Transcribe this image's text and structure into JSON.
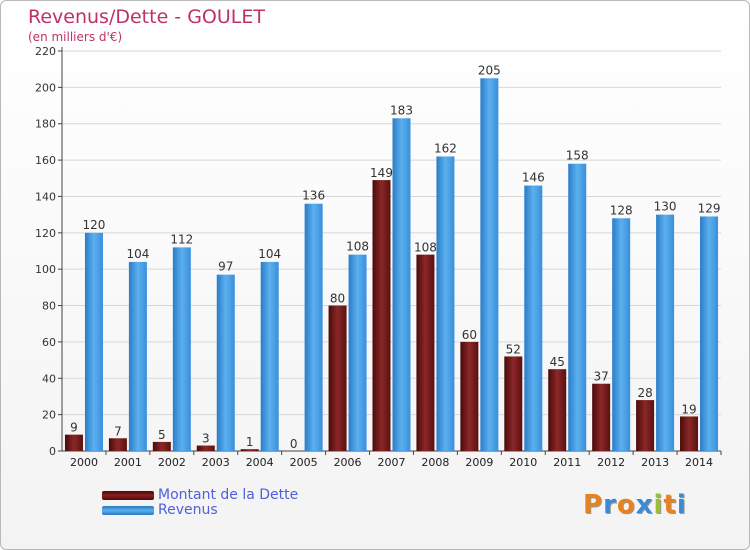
{
  "header": {
    "title": "Revenus/Dette - GOULET",
    "subtitle": "(en milliers d'€)"
  },
  "chart_data": {
    "type": "bar",
    "categories": [
      "2000",
      "2001",
      "2002",
      "2003",
      "2004",
      "2005",
      "2006",
      "2007",
      "2008",
      "2009",
      "2010",
      "2011",
      "2012",
      "2013",
      "2014"
    ],
    "series": [
      {
        "name": "Montant de la Dette",
        "color": "#8b2020",
        "values": [
          9,
          7,
          5,
          3,
          1,
          0,
          80,
          149,
          108,
          60,
          52,
          45,
          37,
          28,
          19
        ]
      },
      {
        "name": "Revenus",
        "color": "#3a96dc",
        "values": [
          120,
          104,
          112,
          97,
          104,
          136,
          108,
          183,
          162,
          205,
          146,
          158,
          128,
          130,
          129
        ]
      }
    ],
    "y_ticks": [
      0,
      20,
      40,
      60,
      80,
      100,
      120,
      140,
      160,
      180,
      200,
      220
    ],
    "ylim": [
      0,
      220
    ],
    "grid": true,
    "legend_position": "bottom-left"
  },
  "legend": {
    "items": [
      {
        "label": "Montant de la Dette",
        "color": "#6e1414"
      },
      {
        "label": "Revenus",
        "color": "#3a96dc"
      }
    ]
  },
  "logo": {
    "text": "Proxiti"
  }
}
